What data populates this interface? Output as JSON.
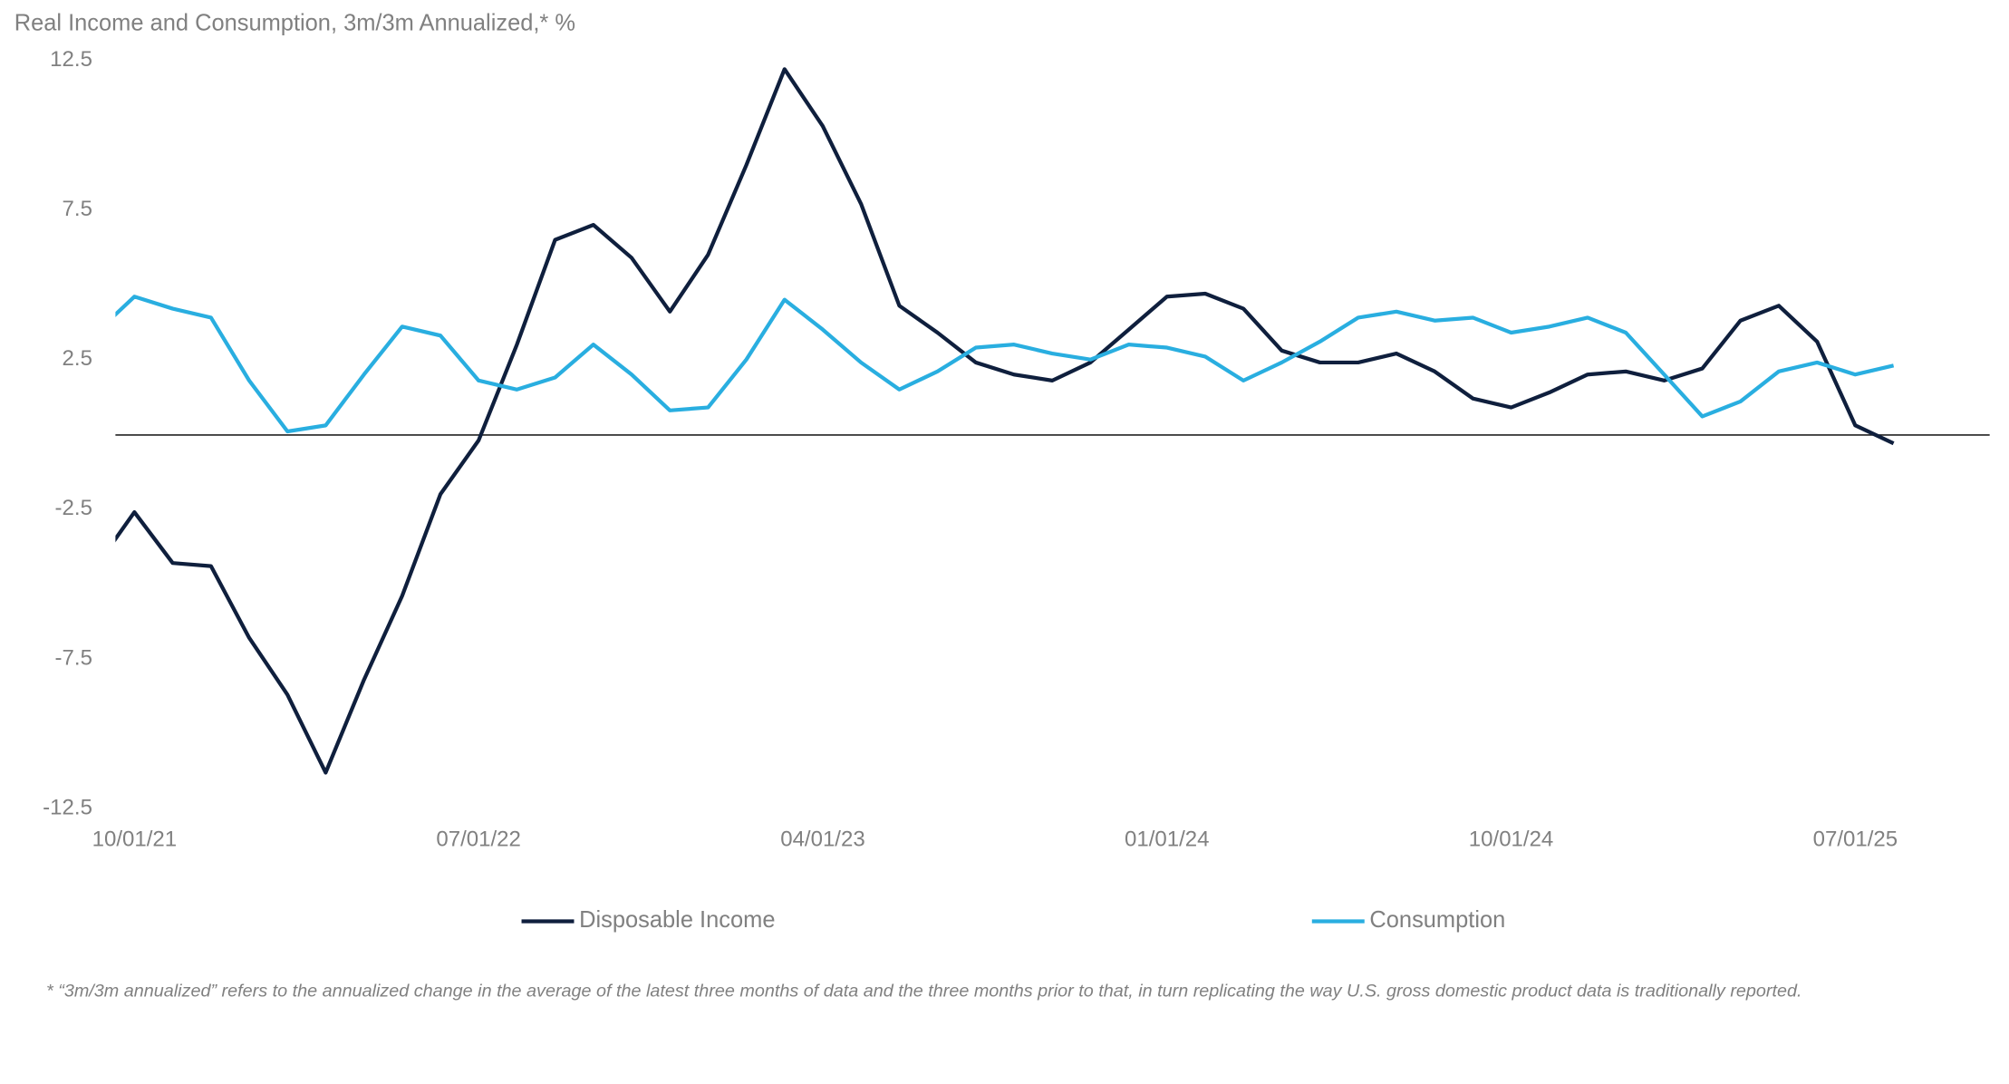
{
  "chart_data": {
    "type": "line",
    "title": "Real Income and Consumption, 3m/3m Annualized,* %",
    "footnote": "* “3m/3m annualized” refers to the annualized change in the average of the latest three months of data and the three months prior to that, in turn replicating the way U.S. gross domestic product data is traditionally reported.",
    "categories": [
      null,
      "10/01/21",
      null,
      null,
      null,
      null,
      null,
      null,
      null,
      null,
      "07/01/22",
      null,
      null,
      null,
      null,
      null,
      null,
      null,
      null,
      "04/01/23",
      null,
      null,
      null,
      null,
      null,
      null,
      null,
      null,
      "01/01/24",
      null,
      null,
      null,
      null,
      null,
      null,
      null,
      null,
      "10/01/24",
      null,
      null,
      null,
      null,
      null,
      null,
      null,
      null,
      "07/01/25",
      null
    ],
    "series": [
      {
        "name": "Disposable Income",
        "color": "#0f1f3d",
        "values": [
          -4.4,
          -2.6,
          -4.3,
          -4.4,
          -6.8,
          -8.7,
          -11.3,
          -8.2,
          -5.4,
          -2.0,
          -0.2,
          3.0,
          6.5,
          7.0,
          5.9,
          4.1,
          6.0,
          9.0,
          12.2,
          10.3,
          7.7,
          4.3,
          3.4,
          2.4,
          2.0,
          1.8,
          2.4,
          3.5,
          4.6,
          4.7,
          4.2,
          2.8,
          2.4,
          2.4,
          2.7,
          2.1,
          1.2,
          0.9,
          1.4,
          2.0,
          2.1,
          1.8,
          2.2,
          3.8,
          4.3,
          3.1,
          0.3,
          -0.3
        ]
      },
      {
        "name": "Consumption",
        "color": "#29aee0",
        "values": [
          3.4,
          4.6,
          4.2,
          3.9,
          1.8,
          0.1,
          0.3,
          2.0,
          3.6,
          3.3,
          1.8,
          1.5,
          1.9,
          3.0,
          2.0,
          0.8,
          0.9,
          2.5,
          4.5,
          3.5,
          2.4,
          1.5,
          2.1,
          2.9,
          3.0,
          2.7,
          2.5,
          3.0,
          2.9,
          2.6,
          1.8,
          2.4,
          3.1,
          3.9,
          4.1,
          3.8,
          3.9,
          3.4,
          3.6,
          3.9,
          3.4,
          2.0,
          0.6,
          1.1,
          2.1,
          2.4,
          2.0,
          2.3
        ]
      }
    ],
    "ylim": [
      -12.5,
      12.5
    ],
    "yticks": [
      12.5,
      7.5,
      2.5,
      -2.5,
      -7.5,
      -12.5
    ],
    "grid": false
  }
}
